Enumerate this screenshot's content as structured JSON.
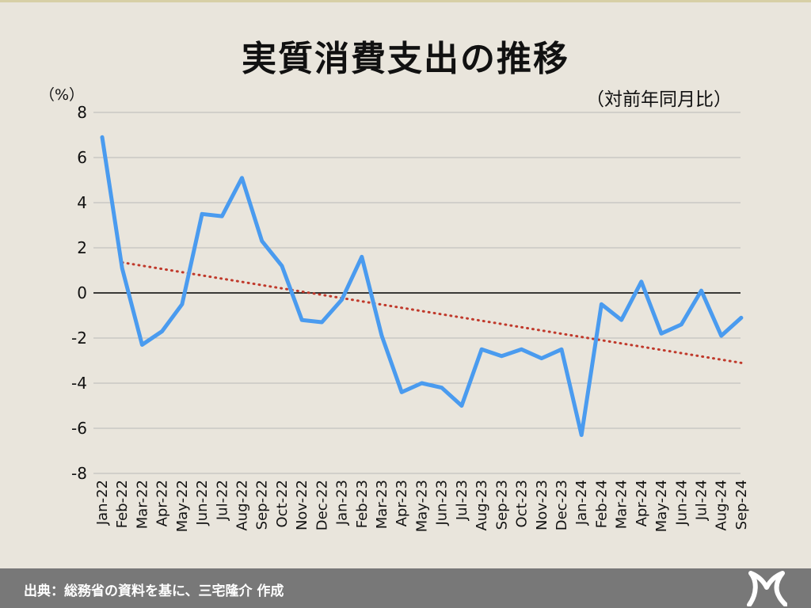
{
  "title": "実質消費支出の推移",
  "subtitle": "（対前年同月比）",
  "footer": {
    "source": "出典：総務省の資料を基に、三宅隆介 作成"
  },
  "colors": {
    "line": "#4a9bef",
    "trend": "#c0392b",
    "zero": "#000000",
    "grid": "#b9b9b9",
    "footer_bg": "#787878"
  },
  "chart_data": {
    "type": "line",
    "ylabel": "（%）",
    "ylim": [
      -8,
      8
    ],
    "yticks": [
      8,
      6,
      4,
      2,
      0,
      -2,
      -4,
      -6,
      -8
    ],
    "grid": true,
    "categories": [
      "Jan-22",
      "Feb-22",
      "Mar-22",
      "Apr-22",
      "May-22",
      "Jun-22",
      "Jul-22",
      "Aug-22",
      "Sep-22",
      "Oct-22",
      "Nov-22",
      "Dec-22",
      "Jan-23",
      "Feb-23",
      "Mar-23",
      "Apr-23",
      "May-23",
      "Jun-23",
      "Jul-23",
      "Aug-23",
      "Sep-23",
      "Oct-23",
      "Nov-23",
      "Dec-23",
      "Jan-24",
      "Feb-24",
      "Mar-24",
      "Apr-24",
      "May-24",
      "Jun-24",
      "Jul-24",
      "Aug-24",
      "Sep-24"
    ],
    "series": [
      {
        "values": [
          6.9,
          1.1,
          -2.3,
          -1.7,
          -0.5,
          3.5,
          3.4,
          5.1,
          2.3,
          1.2,
          -1.2,
          -1.3,
          -0.3,
          1.6,
          -1.9,
          -4.4,
          -4.0,
          -4.2,
          -5.0,
          -2.5,
          -2.8,
          -2.5,
          -2.9,
          -2.5,
          -6.3,
          -0.5,
          -1.2,
          0.5,
          -1.8,
          -1.4,
          0.1,
          -1.9,
          -1.1
        ]
      }
    ],
    "trendline": {
      "style": "dotted",
      "start": 1.35,
      "end": -3.1
    }
  }
}
